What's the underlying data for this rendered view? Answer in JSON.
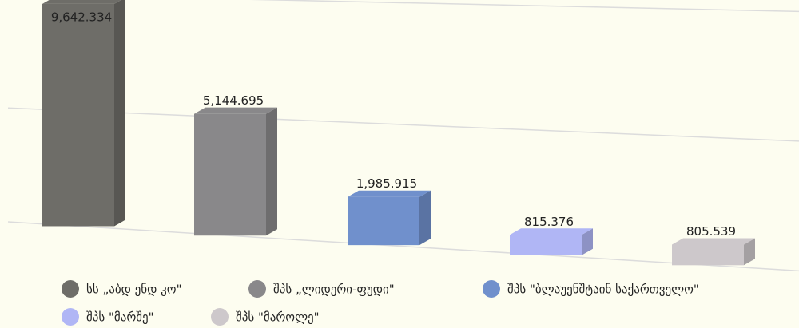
{
  "chart_data": {
    "type": "bar3d",
    "series": [
      {
        "name": "სს „აბდ ენდ კო\"",
        "color": "#6e6d68",
        "values": [
          9642.334
        ],
        "value_labels": [
          "9,642.334"
        ]
      },
      {
        "name": "შპს „ლიდერი-ფუდი\"",
        "color": "#89888a",
        "values": [
          5144.695
        ],
        "value_labels": [
          "5,144.695"
        ]
      },
      {
        "name": "შპს \"ბლაუენშტაინ საქართველო\"",
        "color": "#7090cc",
        "values": [
          1985.915
        ],
        "value_labels": [
          "1,985.915"
        ]
      },
      {
        "name": "შპს \"მარშე\"",
        "color": "#b0b6f5",
        "values": [
          815.376
        ]
      },
      {
        "name": "შპს \"მაროლე\"",
        "color": "#cdc8cb",
        "values": [
          805.539
        ]
      }
    ],
    "ylim": [
      0,
      10000
    ],
    "yticks": [
      0,
      5000,
      10000
    ],
    "grid": true,
    "legend": "bottom"
  }
}
